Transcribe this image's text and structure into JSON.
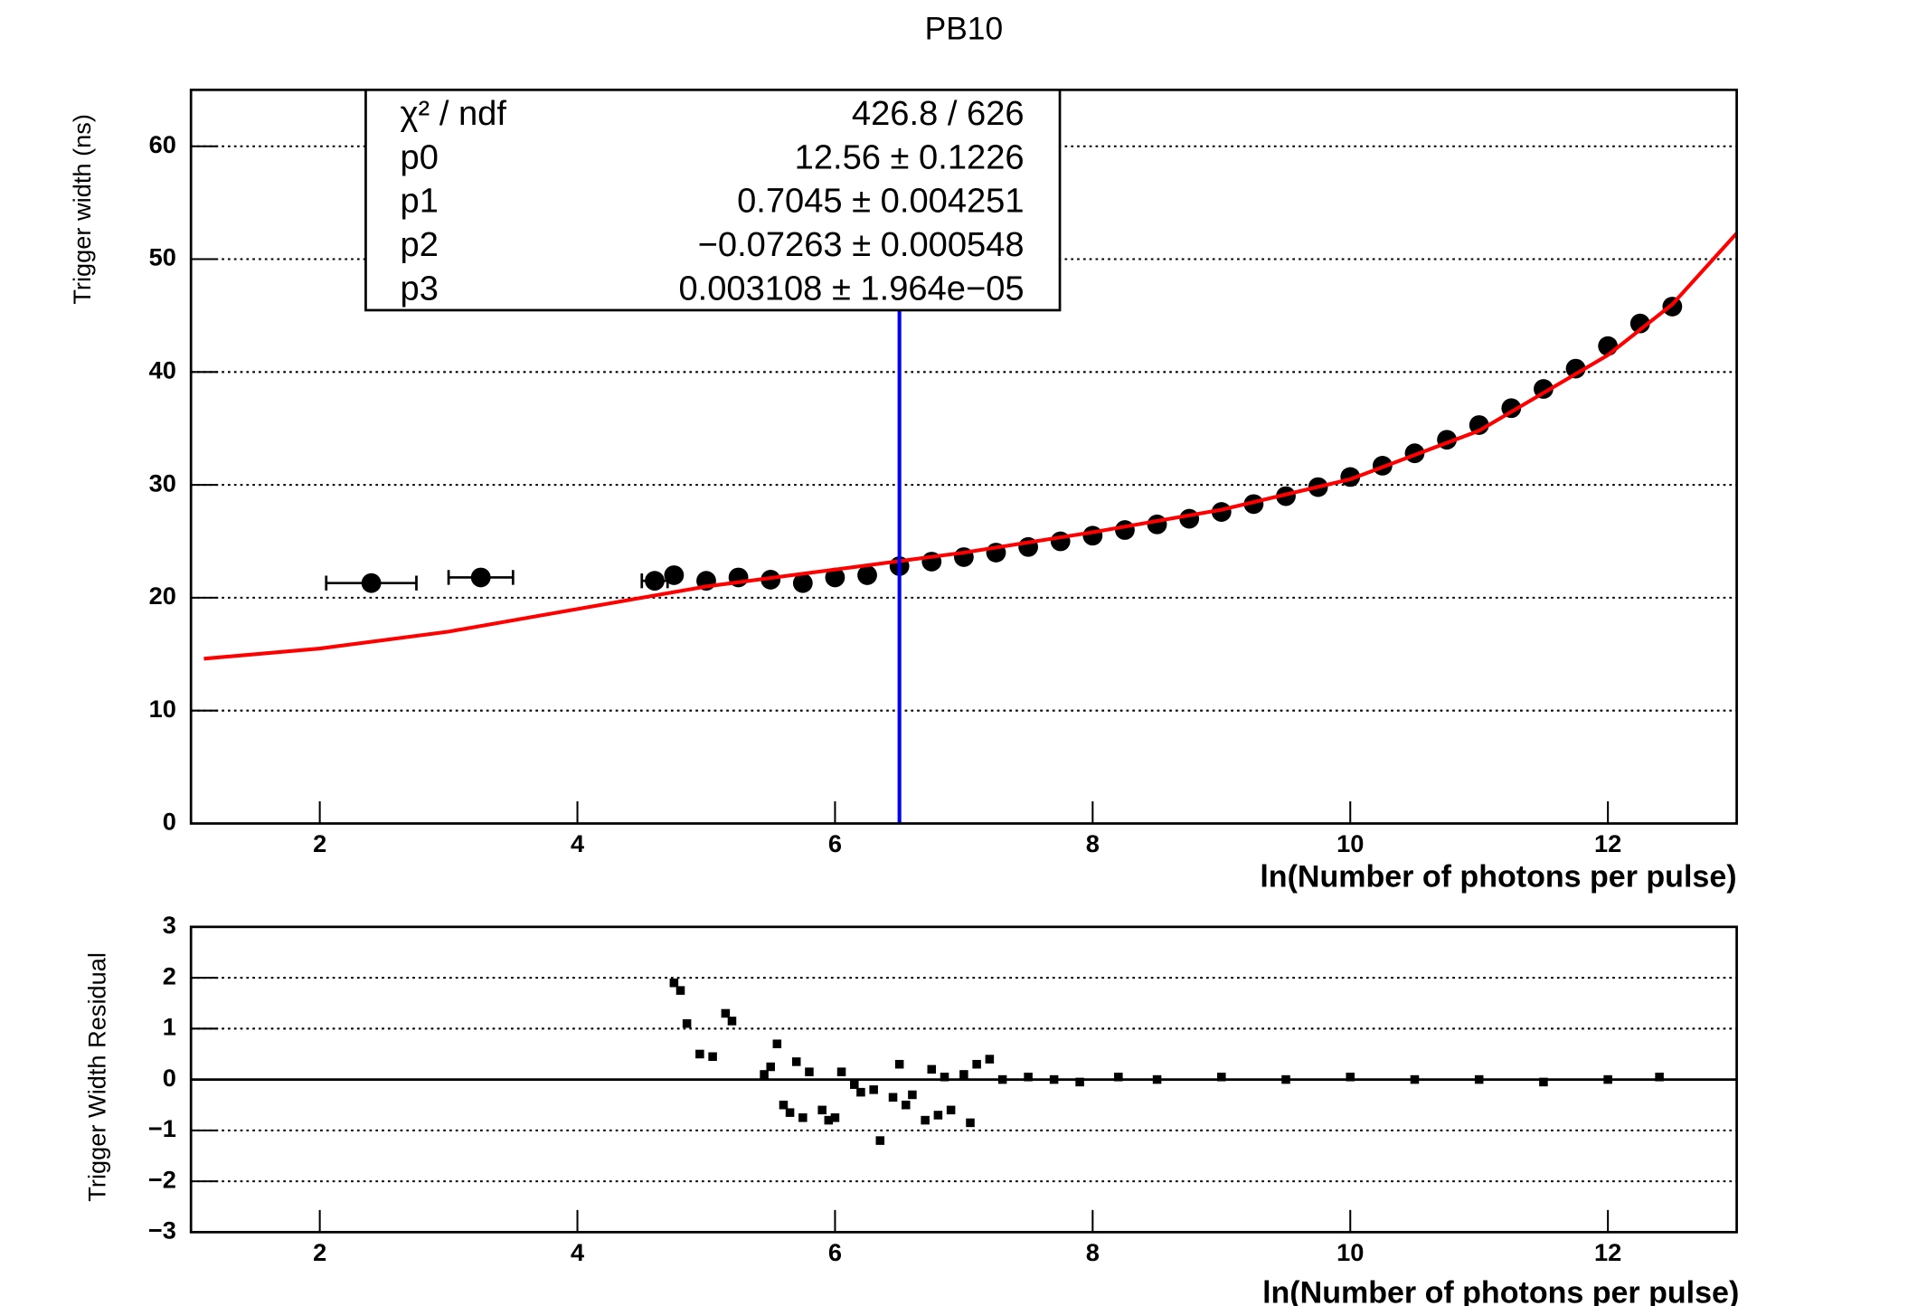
{
  "chart_data": [
    {
      "type": "scatter",
      "title": "PB10",
      "xlabel": "ln(Number of photons per pulse)",
      "ylabel": "Trigger width (ns)",
      "xlim": [
        1,
        13
      ],
      "ylim": [
        0,
        65
      ],
      "xticks": [
        2,
        4,
        6,
        8,
        10,
        12
      ],
      "yticks": [
        0,
        10,
        20,
        30,
        40,
        50,
        60
      ],
      "grid": true,
      "series": [
        {
          "type": "scatter",
          "color": "#000000",
          "x": [
            2.4,
            3.25,
            4.6,
            4.75,
            5.0,
            5.25,
            5.5,
            5.75,
            6.0,
            6.25,
            6.5,
            6.75,
            7.0,
            7.25,
            7.5,
            7.75,
            8.0,
            8.25,
            8.5,
            8.75,
            9.0,
            9.25,
            9.5,
            9.75,
            10.0,
            10.25,
            10.5,
            10.75,
            11.0,
            11.25,
            11.5,
            11.75,
            12.0,
            12.25,
            12.5
          ],
          "values": [
            21.3,
            21.8,
            21.5,
            22.0,
            21.5,
            21.8,
            21.6,
            21.3,
            21.8,
            22.0,
            22.8,
            23.2,
            23.6,
            24.0,
            24.5,
            25.0,
            25.5,
            26.0,
            26.5,
            27.0,
            27.6,
            28.3,
            29.0,
            29.8,
            30.7,
            31.7,
            32.8,
            34.0,
            35.3,
            36.8,
            38.5,
            40.3,
            42.3,
            44.3,
            45.8
          ],
          "x_err": [
            0.35,
            0.25,
            0.1,
            null,
            null,
            null,
            null,
            null,
            null,
            null,
            null,
            null,
            null,
            null,
            null,
            null,
            null,
            null,
            null,
            null,
            null,
            null,
            null,
            null,
            null,
            null,
            null,
            null,
            null,
            null,
            null,
            null,
            null,
            null,
            null
          ]
        },
        {
          "type": "line",
          "color": "#ff0000",
          "x": [
            1.1,
            2,
            3,
            4,
            5,
            6,
            7,
            8,
            9,
            10,
            11,
            12,
            12.5,
            13
          ],
          "values": [
            14.6,
            15.5,
            17.0,
            19.0,
            21.0,
            22.5,
            24.0,
            25.8,
            27.8,
            30.5,
            34.8,
            41.5,
            46.0,
            52.3
          ]
        },
        {
          "type": "line",
          "color": "#0000ff",
          "x": [
            6.5,
            6.5
          ],
          "values": [
            0,
            65
          ]
        }
      ],
      "stats": [
        {
          "label": "χ² / ndf",
          "value": "426.8 / 626"
        },
        {
          "label": "p0",
          "value": "12.56 ± 0.1226"
        },
        {
          "label": "p1",
          "value": "0.7045 ± 0.004251"
        },
        {
          "label": "p2",
          "value": "−0.07263 ± 0.000548"
        },
        {
          "label": "p3",
          "value": "0.003108 ± 1.964e−05"
        }
      ]
    },
    {
      "type": "scatter",
      "xlabel": "ln(Number of photons per pulse)",
      "ylabel": "Trigger Width Residual",
      "xlim": [
        1,
        13
      ],
      "ylim": [
        -3,
        3
      ],
      "xticks": [
        2,
        4,
        6,
        8,
        10,
        12
      ],
      "yticks": [
        {
          "value": -3,
          "label": "−3"
        },
        {
          "value": -2,
          "label": "−2"
        },
        {
          "value": -1,
          "label": "−1"
        },
        0,
        1,
        2,
        3
      ],
      "grid": true,
      "series": [
        {
          "type": "scatter",
          "color": "#000000",
          "x": [
            4.75,
            4.8,
            4.85,
            4.95,
            5.05,
            5.15,
            5.2,
            5.45,
            5.5,
            5.55,
            5.6,
            5.65,
            5.7,
            5.75,
            5.8,
            5.9,
            5.95,
            6.0,
            6.05,
            6.15,
            6.2,
            6.3,
            6.35,
            6.45,
            6.5,
            6.55,
            6.6,
            6.7,
            6.75,
            6.8,
            6.85,
            6.9,
            7.0,
            7.05,
            7.1,
            7.2,
            7.3,
            7.5,
            7.7,
            7.9,
            8.2,
            8.5,
            9.0,
            9.5,
            10.0,
            10.5,
            11.0,
            11.5,
            12.0,
            12.4
          ],
          "values": [
            1.9,
            1.75,
            1.1,
            0.5,
            0.45,
            1.3,
            1.15,
            0.1,
            0.25,
            0.7,
            -0.5,
            -0.65,
            0.35,
            -0.75,
            0.15,
            -0.6,
            -0.8,
            -0.75,
            0.15,
            -0.1,
            -0.25,
            -0.2,
            -1.2,
            -0.35,
            0.3,
            -0.5,
            -0.3,
            -0.8,
            0.2,
            -0.7,
            0.05,
            -0.6,
            0.1,
            -0.85,
            0.3,
            0.4,
            0.0,
            0.05,
            0.0,
            -0.05,
            0.05,
            0.0,
            0.05,
            0.0,
            0.05,
            0.0,
            0.0,
            -0.05,
            0.0,
            0.05
          ]
        }
      ]
    }
  ]
}
